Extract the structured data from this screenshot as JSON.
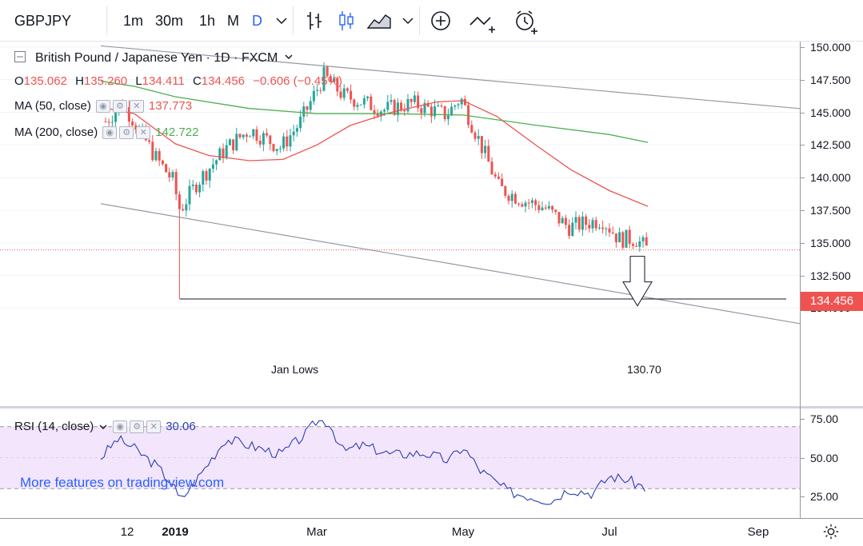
{
  "toolbar": {
    "symbol": "GBPJPY",
    "intervals": [
      "1m",
      "30m",
      "1h",
      "M",
      "D"
    ],
    "active_interval": "D",
    "icons": [
      "chevron-down-icon",
      "bar-chart-icon",
      "candle-chart-icon",
      "area-chart-icon",
      "chevron-down-icon",
      "add-indicator-icon",
      "compare-icon",
      "alert-icon"
    ]
  },
  "legend": {
    "title": "British Pound / Japanese Yen · 1D · FXCM",
    "ohlc": {
      "o_label": "O",
      "o": "135.062",
      "h_label": "H",
      "h": "135.260",
      "l_label": "L",
      "l": "134.411",
      "c_label": "C",
      "c": "134.456",
      "change": "−0.606 (−0.45%)"
    },
    "ma50": {
      "label": "MA (50, close)",
      "value": "137.773",
      "color": "#ef5350"
    },
    "ma200": {
      "label": "MA (200, close)",
      "value": "142.722",
      "color": "#4caf50"
    },
    "rsi": {
      "label": "RSI (14, close)",
      "value": "30.06",
      "color": "#2a3fb4"
    }
  },
  "annotations": {
    "jan_lows": "Jan Lows",
    "target": "130.70"
  },
  "price_tag": "134.456",
  "promo": "More features on tradingview.com",
  "y_axis_price": [
    "150.000",
    "147.500",
    "145.000",
    "142.500",
    "140.000",
    "137.500",
    "135.000",
    "132.500",
    "130.000"
  ],
  "y_axis_rsi": [
    "75.00",
    "50.00",
    "25.00"
  ],
  "x_axis": [
    {
      "label": "12",
      "bold": false
    },
    {
      "label": "2019",
      "bold": true
    },
    {
      "label": "Mar",
      "bold": false
    },
    {
      "label": "May",
      "bold": false
    },
    {
      "label": "Jul",
      "bold": false
    },
    {
      "label": "Sep",
      "bold": false
    }
  ],
  "chart_data": {
    "type": "candlestick",
    "symbol": "GBPJPY",
    "timeframe": "1D",
    "ylim": [
      128.5,
      151
    ],
    "last_price": 134.456,
    "candle_anchors_date_close": [
      [
        "2018-12-03",
        144.3
      ],
      [
        "2018-12-10",
        145.7
      ],
      [
        "2018-12-14",
        144.6
      ],
      [
        "2018-12-24",
        141.5
      ],
      [
        "2018-12-31",
        139.8
      ],
      [
        "2019-01-03",
        137.5
      ],
      [
        "2019-01-10",
        139.6
      ],
      [
        "2019-01-22",
        142.2
      ],
      [
        "2019-02-01",
        143.7
      ],
      [
        "2019-02-14",
        142.3
      ],
      [
        "2019-02-22",
        144.2
      ],
      [
        "2019-03-04",
        147.8
      ],
      [
        "2019-03-12",
        146.3
      ],
      [
        "2019-03-20",
        145.8
      ],
      [
        "2019-03-29",
        145.2
      ],
      [
        "2019-04-10",
        145.7
      ],
      [
        "2019-04-24",
        144.8
      ],
      [
        "2019-04-30",
        146.1
      ],
      [
        "2019-05-08",
        142.7
      ],
      [
        "2019-05-16",
        139.2
      ],
      [
        "2019-05-27",
        138.2
      ],
      [
        "2019-06-04",
        137.7
      ],
      [
        "2019-06-14",
        136.2
      ],
      [
        "2019-06-28",
        136.8
      ],
      [
        "2019-07-05",
        135.3
      ],
      [
        "2019-07-12",
        135.3
      ],
      [
        "2019-07-17",
        134.456
      ]
    ],
    "ma50": {
      "name": "MA (50, close)",
      "points": [
        [
          "2018-12-01",
          145.4
        ],
        [
          "2018-12-15",
          144.9
        ],
        [
          "2019-01-01",
          142.6
        ],
        [
          "2019-01-15",
          141.7
        ],
        [
          "2019-02-01",
          141.3
        ],
        [
          "2019-02-15",
          141.4
        ],
        [
          "2019-03-01",
          142.5
        ],
        [
          "2019-03-15",
          144.0
        ],
        [
          "2019-04-01",
          145.0
        ],
        [
          "2019-04-20",
          145.8
        ],
        [
          "2019-05-01",
          145.9
        ],
        [
          "2019-05-15",
          144.7
        ],
        [
          "2019-06-01",
          142.4
        ],
        [
          "2019-06-15",
          140.6
        ],
        [
          "2019-07-01",
          139.0
        ],
        [
          "2019-07-17",
          137.8
        ]
      ]
    },
    "ma200": {
      "name": "MA (200, close)",
      "points": [
        [
          "2018-12-01",
          147.4
        ],
        [
          "2018-12-15",
          147.0
        ],
        [
          "2019-01-01",
          146.2
        ],
        [
          "2019-02-01",
          145.3
        ],
        [
          "2019-03-01",
          144.9
        ],
        [
          "2019-04-01",
          144.9
        ],
        [
          "2019-05-01",
          144.8
        ],
        [
          "2019-06-01",
          144.0
        ],
        [
          "2019-07-01",
          143.3
        ],
        [
          "2019-07-17",
          142.7
        ]
      ]
    },
    "jan_lows_level": 130.7,
    "downward_channel": {
      "upper": [
        [
          "2018-12-01",
          150.1
        ],
        [
          "2019-09-30",
          145.1
        ]
      ],
      "lower": [
        [
          "2018-12-01",
          138.0
        ],
        [
          "2019-09-25",
          128.6
        ]
      ]
    },
    "rsi": {
      "name": "RSI (14, close)",
      "ylim": [
        12,
        79
      ],
      "overbought": 70,
      "oversold": 30,
      "points": [
        [
          "2018-12-01",
          50
        ],
        [
          "2018-12-08",
          62
        ],
        [
          "2018-12-14",
          57
        ],
        [
          "2018-12-24",
          45
        ],
        [
          "2018-12-31",
          33
        ],
        [
          "2019-01-03",
          22
        ],
        [
          "2019-01-10",
          36
        ],
        [
          "2019-01-22",
          62
        ],
        [
          "2019-02-01",
          58
        ],
        [
          "2019-02-14",
          52
        ],
        [
          "2019-02-25",
          66
        ],
        [
          "2019-03-01",
          74
        ],
        [
          "2019-03-06",
          73
        ],
        [
          "2019-03-12",
          54
        ],
        [
          "2019-03-20",
          58
        ],
        [
          "2019-04-01",
          52
        ],
        [
          "2019-04-15",
          53
        ],
        [
          "2019-04-25",
          48
        ],
        [
          "2019-05-01",
          57
        ],
        [
          "2019-05-08",
          42
        ],
        [
          "2019-05-20",
          28
        ],
        [
          "2019-06-01",
          24
        ],
        [
          "2019-06-07",
          22
        ],
        [
          "2019-06-14",
          30
        ],
        [
          "2019-06-24",
          27
        ],
        [
          "2019-07-01",
          38
        ],
        [
          "2019-07-08",
          36
        ],
        [
          "2019-07-17",
          30
        ]
      ]
    }
  }
}
